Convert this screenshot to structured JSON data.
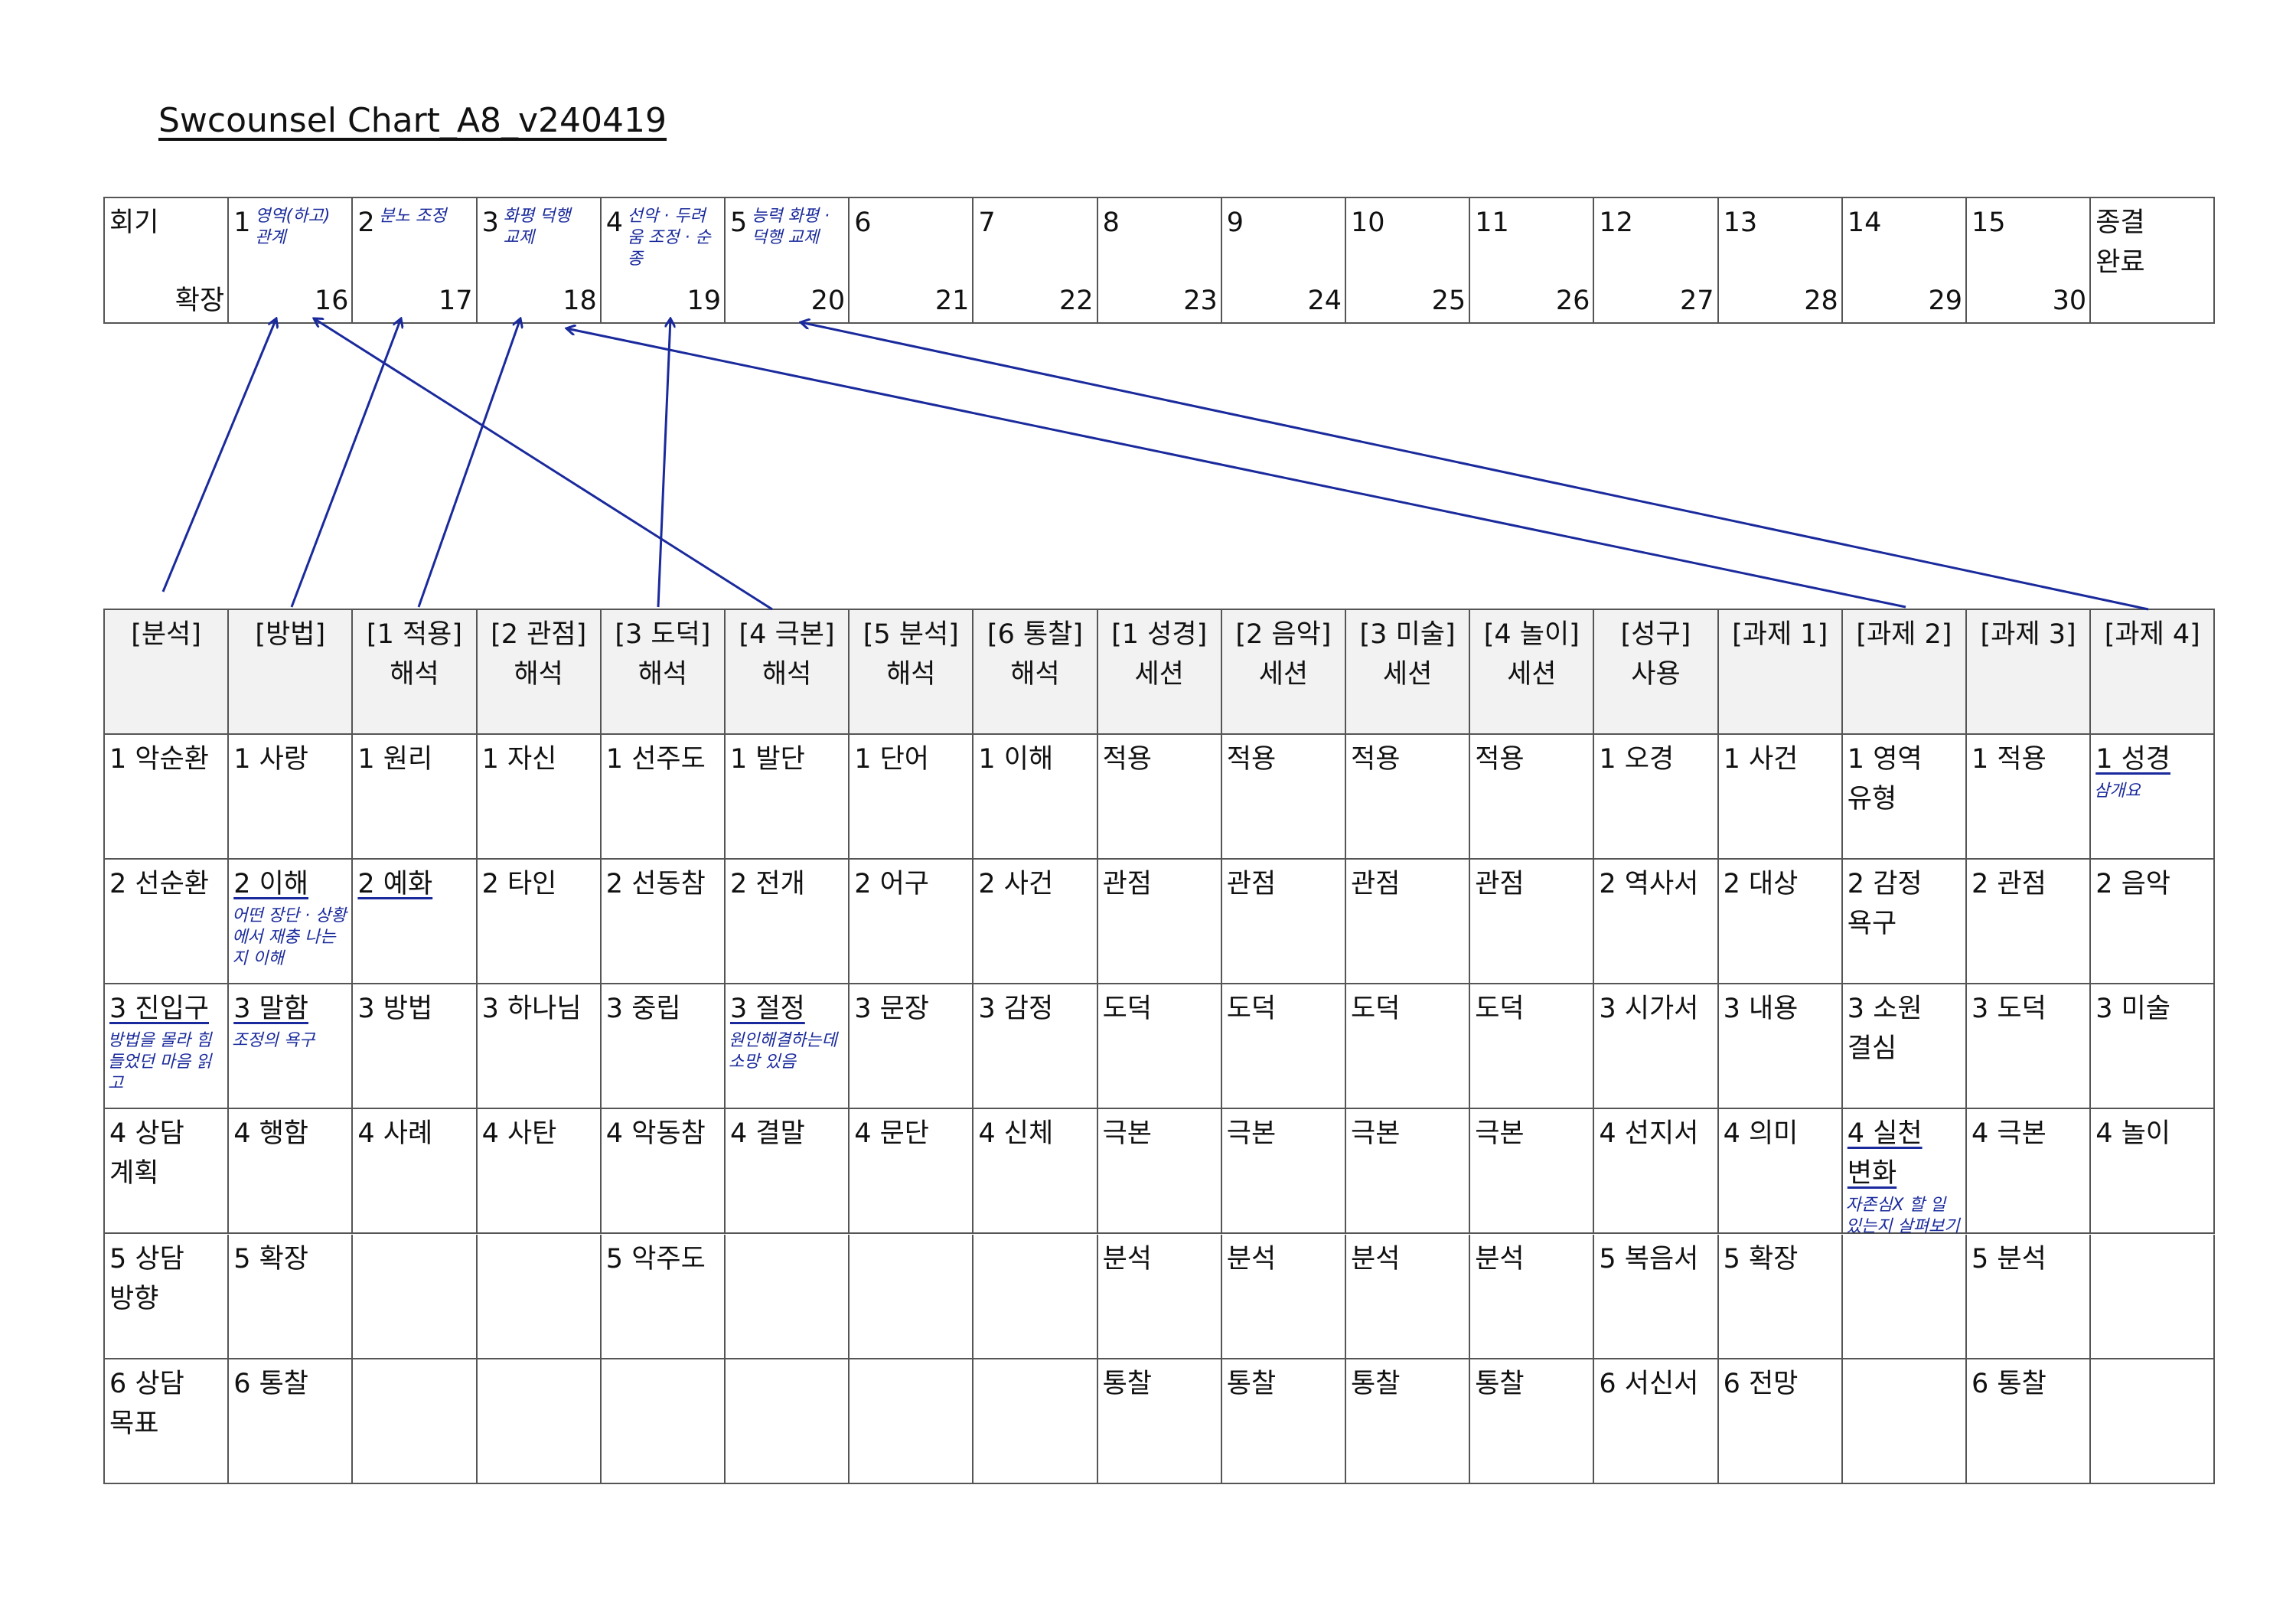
{
  "title": "Swcounsel Chart_A8_v240419",
  "top_table": {
    "first": {
      "top": "회기",
      "bottom": "확장"
    },
    "cells": [
      {
        "number": "1",
        "bottom": "16",
        "note": "영역(하고) 관계"
      },
      {
        "number": "2",
        "bottom": "17",
        "note": "분노 조정"
      },
      {
        "number": "3",
        "bottom": "18",
        "note": "화평 덕행 교제"
      },
      {
        "number": "4",
        "bottom": "19",
        "note": "선악 · 두려움 조정 · 순종"
      },
      {
        "number": "5",
        "bottom": "20",
        "note": "능력 화평 · 덕행 교제"
      },
      {
        "number": "6",
        "bottom": "21"
      },
      {
        "number": "7",
        "bottom": "22"
      },
      {
        "number": "8",
        "bottom": "23"
      },
      {
        "number": "9",
        "bottom": "24"
      },
      {
        "number": "10",
        "bottom": "25"
      },
      {
        "number": "11",
        "bottom": "26"
      },
      {
        "number": "12",
        "bottom": "27"
      },
      {
        "number": "13",
        "bottom": "28"
      },
      {
        "number": "14",
        "bottom": "29"
      },
      {
        "number": "15",
        "bottom": "30"
      }
    ],
    "last": "종결\n완료"
  },
  "main_table": {
    "header": [
      "[분석]",
      "[방법]",
      "[1 적용]\n해석",
      "[2 관점]\n해석",
      "[3 도덕]\n해석",
      "[4 극본]\n해석",
      "[5 분석]\n해석",
      "[6 통찰]\n해석",
      "[1 성경]\n세션",
      "[2 음악]\n세션",
      "[3 미술]\n세션",
      "[4 놀이]\n세션",
      "[성구]\n사용",
      "[과제 1]",
      "[과제 2]",
      "[과제 3]",
      "[과제 4]"
    ],
    "rows": [
      [
        "1 악순환",
        "1 사랑",
        "1 원리",
        "1 자신",
        "1 선주도",
        "1 발단",
        "1 단어",
        "1 이해",
        "적용",
        "적용",
        "적용",
        "적용",
        "1 오경",
        "1 사건",
        "1 영역\n유형",
        "1 적용",
        {
          "text": "1 성경",
          "note": "삼개요"
        }
      ],
      [
        "2 선순환",
        {
          "text": "2 이해",
          "note": "어떤 장단 · 상황에서 재충 나는지 이해"
        },
        "2 예화",
        "2 타인",
        "2 선동참",
        "2 전개",
        "2 어구",
        "2 사건",
        "관점",
        "관점",
        "관점",
        "관점",
        "2 역사서",
        "2 대상",
        "2 감정\n욕구",
        "2 관점",
        "2 음악"
      ],
      [
        {
          "text": "3 진입구",
          "note": "방법을 몰라 힘들었던 마음 읽고"
        },
        {
          "text": "3 말함",
          "note": "조정의 욕구"
        },
        "3 방법",
        "3 하나님",
        "3 중립",
        {
          "text": "3 절정",
          "note": "원인해결하는데 소망 있음"
        },
        "3 문장",
        "3 감정",
        "도덕",
        "도덕",
        "도덕",
        "도덕",
        "3 시가서",
        "3 내용",
        "3 소원\n결심",
        "3 도덕",
        "3 미술"
      ],
      [
        "4 상담\n계획",
        "4 행함",
        "4 사례",
        "4 사탄",
        "4 악동참",
        "4 결말",
        "4 문단",
        "4 신체",
        "극본",
        "극본",
        "극본",
        "극본",
        "4 선지서",
        "4 의미",
        {
          "text": "4 실천\n변화",
          "note": "자존심X 할 일 있는지 살펴보기"
        },
        "4 극본",
        "4 놀이"
      ],
      [
        "5 상담\n방향",
        "5 확장",
        null,
        null,
        "5 악주도",
        null,
        null,
        null,
        "분석",
        "분석",
        "분석",
        "분석",
        "5 복음서",
        "5 확장",
        null,
        "5 분석",
        null
      ],
      [
        "6 상담\n목표",
        "6 통찰",
        null,
        null,
        null,
        null,
        null,
        null,
        "통찰",
        "통찰",
        "통찰",
        "통찰",
        "6 서신서",
        "6 전망",
        null,
        "6 통찰",
        null
      ]
    ]
  }
}
